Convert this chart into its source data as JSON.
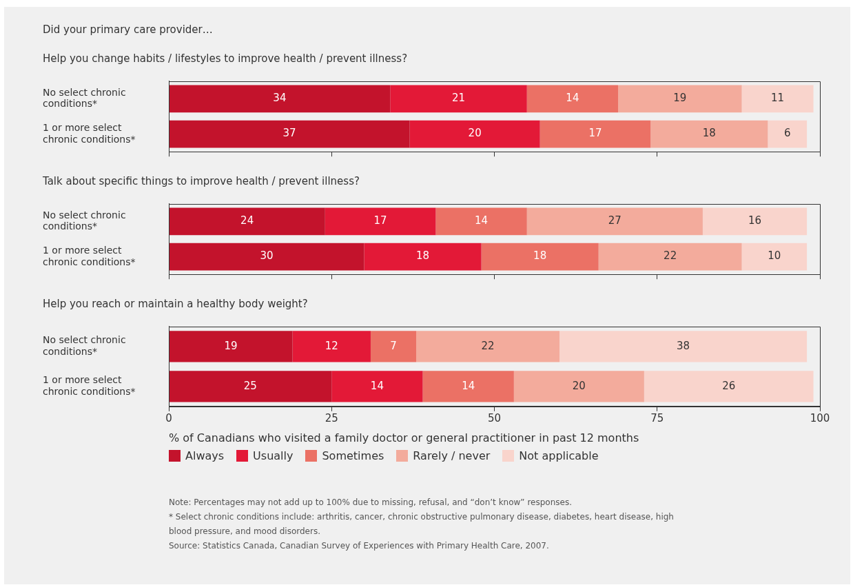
{
  "chart_data": [
    {
      "type": "bar",
      "orientation": "horizontal",
      "stacked": true,
      "data_labels": true,
      "tick_labels": "y",
      "title": "Did your primary care provider…",
      "subtitle": "Help you change habits / lifestyles to improve health / prevent illness?",
      "categories": [
        "No select chronic conditions*",
        "1 or more select chronic conditions*"
      ],
      "xlim": [
        0,
        100
      ],
      "xticks": [
        0,
        25,
        50,
        75,
        100
      ],
      "series": [
        {
          "color": "#c3132c",
          "values": [
            34,
            37
          ]
        },
        {
          "color": "#e31937",
          "values": [
            21,
            20
          ]
        },
        {
          "color": "#eb7165",
          "values": [
            14,
            17
          ]
        },
        {
          "color": "#f3ab9c",
          "values": [
            19,
            18
          ]
        },
        {
          "color": "#f9d4cc",
          "values": [
            11,
            6
          ]
        }
      ]
    },
    {
      "type": "bar",
      "orientation": "horizontal",
      "stacked": true,
      "data_labels": true,
      "tick_labels": "y",
      "title": "Talk about specific things to improve health / prevent illness?",
      "categories": [
        "No select chronic conditions*",
        "1 or more select chronic conditions*"
      ],
      "xlim": [
        0,
        100
      ],
      "xticks": [
        0,
        25,
        50,
        75,
        100
      ],
      "series": [
        {
          "color": "#c3132c",
          "values": [
            24,
            30
          ]
        },
        {
          "color": "#e31937",
          "values": [
            17,
            18
          ]
        },
        {
          "color": "#eb7165",
          "values": [
            14,
            18
          ]
        },
        {
          "color": "#f3ab9c",
          "values": [
            27,
            22
          ]
        },
        {
          "color": "#f9d4cc",
          "values": [
            16,
            10
          ]
        }
      ]
    },
    {
      "type": "bar",
      "orientation": "horizontal",
      "stacked": true,
      "data_labels": true,
      "legend": "bottom",
      "title": "Help you reach or maintain a healthy body weight?",
      "xlabel": "% of Canadians who visited a family doctor or general practitioner in past 12 months",
      "categories": [
        "No select chronic conditions*",
        "1 or more select chronic conditions*"
      ],
      "xlim": [
        0,
        100
      ],
      "xticks": [
        0,
        25,
        50,
        75,
        100
      ],
      "series": [
        {
          "name": "Always",
          "color": "#c3132c",
          "values": [
            19,
            25
          ]
        },
        {
          "name": "Usually",
          "color": "#e31937",
          "values": [
            12,
            14
          ]
        },
        {
          "name": "Sometimes",
          "color": "#eb7165",
          "values": [
            7,
            14
          ]
        },
        {
          "name": "Rarely / never",
          "color": "#f3ab9c",
          "values": [
            22,
            20
          ]
        },
        {
          "name": "Not applicable",
          "color": "#f9d4cc",
          "values": [
            38,
            26
          ]
        }
      ],
      "annotations": [
        "Note: Percentages may not add up to 100% due to missing, refusal, and “don’t know” responses.",
        "* Select chronic conditions include: arthritis, cancer, chronic obstructive pulmonary disease, diabetes, heart disease, high blood pressure, and mood disorders.",
        "Source: Statistics Canada, Canadian Survey of Experiences with Primary Health Care, 2007."
      ]
    }
  ]
}
